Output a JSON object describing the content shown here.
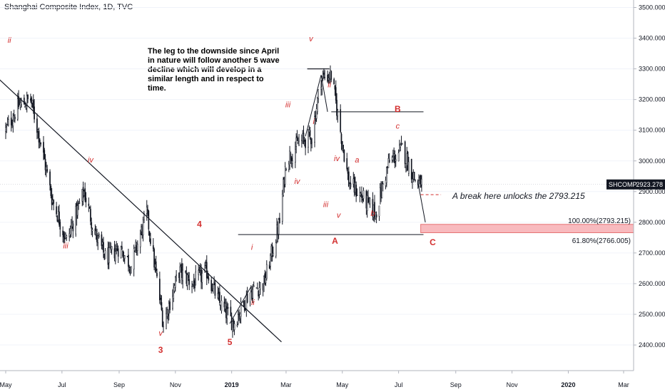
{
  "title": "Shanghai Composite Index, 1D, TVC",
  "note": "The leg to the downside since April in nature will follow another 5 wave decline which will develop in a similar length and in respect to time.",
  "annotation_break": "A break here unlocks the 2793.215",
  "fib_levels": [
    "100.00%(2793.215)",
    "61.80%(2766.005)"
  ],
  "last_price": {
    "symbol": "SHCOMP",
    "value": "2923.278"
  },
  "colors": {
    "wave_labels": "#d32f2f",
    "candles": "#131722",
    "fib_zone": "#f5a3a8",
    "price_tag": "#131722"
  },
  "chart_data": {
    "type": "candlestick",
    "symbol": "SHCOMP",
    "timeframe": "1D",
    "yaxis_ticks": [
      "3500.000",
      "3400.000",
      "3300.000",
      "3200.000",
      "3100.000",
      "3000.000",
      "2900.000",
      "2800.000",
      "2700.000",
      "2600.000",
      "2500.000",
      "2400.000"
    ],
    "ylim": [
      2300,
      3510
    ],
    "xaxis_ticks": [
      "May",
      "Jul",
      "Sep",
      "Nov",
      "2019",
      "Mar",
      "May",
      "Jul",
      "Sep",
      "Nov",
      "2020",
      "Mar"
    ],
    "close_path": [
      [
        "2018-05-01",
        3100
      ],
      [
        "2018-05-15",
        3180
      ],
      [
        "2018-05-28",
        3200
      ],
      [
        "2018-06-08",
        3060
      ],
      [
        "2018-06-20",
        2880
      ],
      [
        "2018-07-06",
        2740
      ],
      [
        "2018-07-25",
        2900
      ],
      [
        "2018-08-06",
        2760
      ],
      [
        "2018-08-18",
        2680
      ],
      [
        "2018-09-01",
        2720
      ],
      [
        "2018-09-14",
        2660
      ],
      [
        "2018-10-01",
        2830
      ],
      [
        "2018-10-19",
        2470
      ],
      [
        "2018-11-05",
        2640
      ],
      [
        "2018-11-20",
        2600
      ],
      [
        "2018-12-05",
        2640
      ],
      [
        "2018-12-18",
        2540
      ],
      [
        "2019-01-03",
        2470
      ],
      [
        "2019-01-20",
        2570
      ],
      [
        "2019-02-05",
        2600
      ],
      [
        "2019-02-22",
        2800
      ],
      [
        "2019-03-01",
        3000
      ],
      [
        "2019-03-15",
        3060
      ],
      [
        "2019-03-29",
        3080
      ],
      [
        "2019-04-08",
        3270
      ],
      [
        "2019-04-19",
        3280
      ],
      [
        "2019-04-30",
        3080
      ],
      [
        "2019-05-08",
        2930
      ],
      [
        "2019-05-20",
        2890
      ],
      [
        "2019-06-06",
        2830
      ],
      [
        "2019-06-20",
        2990
      ],
      [
        "2019-07-05",
        3040
      ],
      [
        "2019-07-20",
        2930
      ],
      [
        "2019-07-28",
        2923
      ]
    ],
    "trendline": [
      [
        "2018-04-01",
        3330
      ],
      [
        "2019-02-24",
        2410
      ]
    ],
    "horizontal_levels": [
      {
        "from": "2019-01-08",
        "to": "2019-07-28",
        "y": 2760
      },
      {
        "from": "2019-04-19",
        "to": "2019-07-28",
        "y": 3160
      },
      {
        "from": "2019-03-24",
        "to": "2019-04-17",
        "y": 3300
      }
    ],
    "dashed_level": {
      "from": "2019-07-25",
      "to": "2019-08-16",
      "y": 2890
    },
    "fib_zone": {
      "from": "2019-07-25",
      "to": "2020-04-10",
      "y_top": 2793.215,
      "y_bottom": 2766.005
    },
    "wave_labels": [
      {
        "text": "ii",
        "date": "2018-05-05",
        "y": 3385,
        "style": "minor"
      },
      {
        "text": "iv",
        "date": "2018-08-01",
        "y": 2995,
        "style": "minor"
      },
      {
        "text": "iii",
        "date": "2018-07-05",
        "y": 2715,
        "style": "minor"
      },
      {
        "text": "v",
        "date": "2018-10-16",
        "y": 2430,
        "style": "minor"
      },
      {
        "text": "3",
        "date": "2018-10-16",
        "y": 2375,
        "style": "major"
      },
      {
        "text": "4",
        "date": "2018-11-27",
        "y": 2785,
        "style": "major"
      },
      {
        "text": "5",
        "date": "2018-12-30",
        "y": 2400,
        "style": "major"
      },
      {
        "text": "i",
        "date": "2019-01-23",
        "y": 2710,
        "style": "minor"
      },
      {
        "text": "ii",
        "date": "2019-01-24",
        "y": 2530,
        "style": "minor"
      },
      {
        "text": "iii",
        "date": "2019-03-03",
        "y": 3175,
        "style": "minor"
      },
      {
        "text": "iv",
        "date": "2019-03-13",
        "y": 2925,
        "style": "minor"
      },
      {
        "text": "i",
        "date": "2019-03-31",
        "y": 3120,
        "style": "minor"
      },
      {
        "text": "v",
        "date": "2019-03-28",
        "y": 3390,
        "style": "minor"
      },
      {
        "text": "ii",
        "date": "2019-04-17",
        "y": 3240,
        "style": "minor"
      },
      {
        "text": "iv",
        "date": "2019-04-25",
        "y": 3000,
        "style": "minor"
      },
      {
        "text": "a",
        "date": "2019-05-17",
        "y": 2995,
        "style": "minor"
      },
      {
        "text": "iii",
        "date": "2019-04-13",
        "y": 2850,
        "style": "minor"
      },
      {
        "text": "v",
        "date": "2019-04-27",
        "y": 2815,
        "style": "minor"
      },
      {
        "text": "b",
        "date": "2019-06-03",
        "y": 2820,
        "style": "minor"
      },
      {
        "text": "A",
        "date": "2019-04-23",
        "y": 2730,
        "style": "major"
      },
      {
        "text": "c",
        "date": "2019-06-30",
        "y": 3105,
        "style": "minor"
      },
      {
        "text": "B",
        "date": "2019-06-30",
        "y": 3160,
        "style": "major"
      },
      {
        "text": "C",
        "date": "2019-08-07",
        "y": 2725,
        "style": "major"
      }
    ],
    "price_tag": {
      "y": 2923.278
    }
  }
}
